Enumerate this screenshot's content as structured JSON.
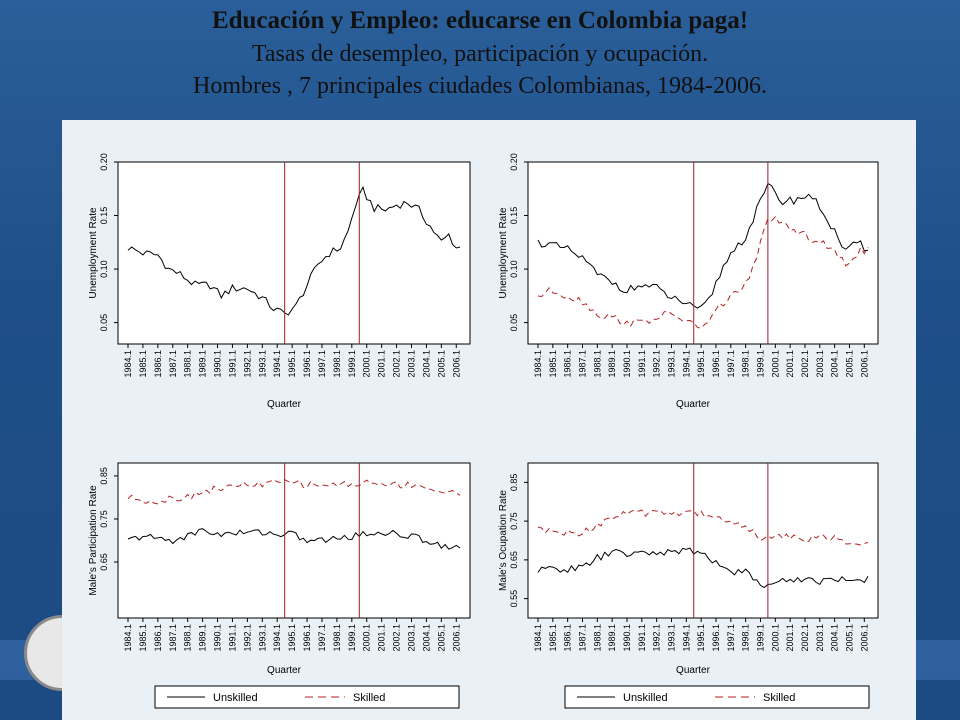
{
  "header": {
    "title": "Educación y Empleo: educarse en Colombia paga!",
    "subtitle1": "Tasas de desempleo, participación y ocupación.",
    "subtitle2": "Hombres , 7 principales ciudades Colombianas, 1984-2006."
  },
  "colors": {
    "unskilled": "#000000",
    "skilled": "#b22222",
    "vline": "#9b1c2c",
    "plot_bg": "#ffffff"
  },
  "chart_data": [
    {
      "type": "line",
      "ylabel": "Unemployment Rate",
      "xlabel": "Quarter",
      "yticks": [
        0.05,
        0.1,
        0.15,
        0.2
      ],
      "ytick_labels": [
        "0.05",
        "0.10",
        "0.15",
        "0.20"
      ],
      "ylim": [
        0.03,
        0.2
      ],
      "vlines": [
        1994.5,
        1999.5
      ],
      "x_start": 1984.0,
      "x_end": 2006.25,
      "series": [
        {
          "name": "Unskilled",
          "keypoints": [
            [
              1984.0,
              0.12
            ],
            [
              1985.0,
              0.115
            ],
            [
              1986.0,
              0.113
            ],
            [
              1986.75,
              0.1
            ],
            [
              1987.5,
              0.095
            ],
            [
              1988.5,
              0.085
            ],
            [
              1989.5,
              0.085
            ],
            [
              1990.25,
              0.075
            ],
            [
              1991.0,
              0.082
            ],
            [
              1992.0,
              0.082
            ],
            [
              1993.0,
              0.073
            ],
            [
              1993.75,
              0.063
            ],
            [
              1994.5,
              0.058
            ],
            [
              1995.25,
              0.065
            ],
            [
              1996.0,
              0.085
            ],
            [
              1996.75,
              0.105
            ],
            [
              1997.5,
              0.115
            ],
            [
              1998.25,
              0.12
            ],
            [
              1998.75,
              0.135
            ],
            [
              1999.25,
              0.16
            ],
            [
              1999.75,
              0.173
            ],
            [
              2000.5,
              0.157
            ],
            [
              2001.25,
              0.155
            ],
            [
              2002.0,
              0.16
            ],
            [
              2002.75,
              0.162
            ],
            [
              2003.5,
              0.155
            ],
            [
              2004.25,
              0.14
            ],
            [
              2005.0,
              0.125
            ],
            [
              2005.5,
              0.132
            ],
            [
              2006.0,
              0.12
            ]
          ]
        }
      ]
    },
    {
      "type": "line",
      "ylabel": "Unemployment Rate",
      "xlabel": "Quarter",
      "yticks": [
        0.05,
        0.1,
        0.15,
        0.2
      ],
      "ytick_labels": [
        "0.05",
        "0.10",
        "0.15",
        "0.20"
      ],
      "ylim": [
        0.03,
        0.2
      ],
      "vlines": [
        1994.5,
        1999.5
      ],
      "x_start": 1984.0,
      "x_end": 2006.25,
      "series": [
        {
          "name": "Unskilled",
          "keypoints": [
            [
              1984.0,
              0.125
            ],
            [
              1985.0,
              0.122
            ],
            [
              1986.0,
              0.118
            ],
            [
              1987.0,
              0.11
            ],
            [
              1988.0,
              0.095
            ],
            [
              1989.0,
              0.088
            ],
            [
              1990.0,
              0.08
            ],
            [
              1991.0,
              0.085
            ],
            [
              1992.0,
              0.082
            ],
            [
              1993.0,
              0.073
            ],
            [
              1994.0,
              0.068
            ],
            [
              1994.75,
              0.06
            ],
            [
              1995.5,
              0.07
            ],
            [
              1996.25,
              0.095
            ],
            [
              1997.0,
              0.115
            ],
            [
              1998.0,
              0.13
            ],
            [
              1998.75,
              0.155
            ],
            [
              1999.5,
              0.178
            ],
            [
              2000.5,
              0.163
            ],
            [
              2001.5,
              0.165
            ],
            [
              2002.25,
              0.17
            ],
            [
              2003.0,
              0.158
            ],
            [
              2004.0,
              0.135
            ],
            [
              2004.75,
              0.115
            ],
            [
              2005.5,
              0.125
            ],
            [
              2006.0,
              0.12
            ]
          ]
        },
        {
          "name": "Skilled",
          "keypoints": [
            [
              1984.0,
              0.075
            ],
            [
              1985.0,
              0.08
            ],
            [
              1986.0,
              0.075
            ],
            [
              1987.0,
              0.07
            ],
            [
              1988.0,
              0.058
            ],
            [
              1989.0,
              0.055
            ],
            [
              1990.0,
              0.05
            ],
            [
              1991.0,
              0.05
            ],
            [
              1992.0,
              0.055
            ],
            [
              1993.0,
              0.058
            ],
            [
              1994.0,
              0.052
            ],
            [
              1994.75,
              0.045
            ],
            [
              1995.5,
              0.05
            ],
            [
              1996.25,
              0.065
            ],
            [
              1997.0,
              0.075
            ],
            [
              1998.0,
              0.085
            ],
            [
              1998.75,
              0.11
            ],
            [
              1999.5,
              0.15
            ],
            [
              2000.5,
              0.14
            ],
            [
              2001.5,
              0.135
            ],
            [
              2002.25,
              0.13
            ],
            [
              2003.0,
              0.125
            ],
            [
              2004.0,
              0.115
            ],
            [
              2004.75,
              0.105
            ],
            [
              2005.5,
              0.115
            ],
            [
              2006.0,
              0.118
            ]
          ]
        }
      ]
    },
    {
      "type": "line",
      "ylabel": "Male's Participation Rate",
      "xlabel": "Quarter",
      "yticks": [
        0.65,
        0.75,
        0.85
      ],
      "ytick_labels": [
        "0.65",
        "0.75",
        "0.85"
      ],
      "ylim": [
        0.52,
        0.88
      ],
      "vlines": [
        1994.5,
        1999.5
      ],
      "x_start": 1984.0,
      "x_end": 2006.25,
      "series": [
        {
          "name": "Unskilled",
          "keypoints": [
            [
              1984.0,
              0.7
            ],
            [
              1985.0,
              0.71
            ],
            [
              1986.0,
              0.705
            ],
            [
              1987.0,
              0.7
            ],
            [
              1988.0,
              0.71
            ],
            [
              1989.0,
              0.725
            ],
            [
              1990.0,
              0.715
            ],
            [
              1991.0,
              0.715
            ],
            [
              1992.0,
              0.72
            ],
            [
              1993.0,
              0.72
            ],
            [
              1994.0,
              0.715
            ],
            [
              1995.0,
              0.715
            ],
            [
              1996.0,
              0.7
            ],
            [
              1997.0,
              0.7
            ],
            [
              1998.0,
              0.705
            ],
            [
              1999.0,
              0.71
            ],
            [
              2000.0,
              0.715
            ],
            [
              2001.0,
              0.72
            ],
            [
              2002.0,
              0.715
            ],
            [
              2003.0,
              0.71
            ],
            [
              2004.0,
              0.7
            ],
            [
              2005.0,
              0.69
            ],
            [
              2006.0,
              0.685
            ]
          ]
        },
        {
          "name": "Skilled",
          "keypoints": [
            [
              1984.0,
              0.8
            ],
            [
              1985.0,
              0.795
            ],
            [
              1986.0,
              0.79
            ],
            [
              1987.0,
              0.8
            ],
            [
              1988.0,
              0.8
            ],
            [
              1989.0,
              0.815
            ],
            [
              1990.0,
              0.82
            ],
            [
              1991.0,
              0.825
            ],
            [
              1992.0,
              0.83
            ],
            [
              1993.0,
              0.83
            ],
            [
              1994.0,
              0.835
            ],
            [
              1995.0,
              0.835
            ],
            [
              1996.0,
              0.83
            ],
            [
              1997.0,
              0.83
            ],
            [
              1998.0,
              0.83
            ],
            [
              1999.0,
              0.83
            ],
            [
              2000.0,
              0.835
            ],
            [
              2001.0,
              0.83
            ],
            [
              2002.0,
              0.83
            ],
            [
              2003.0,
              0.83
            ],
            [
              2004.0,
              0.825
            ],
            [
              2005.0,
              0.81
            ],
            [
              2006.0,
              0.81
            ]
          ]
        }
      ]
    },
    {
      "type": "line",
      "ylabel": "Male's Ocupation Rate",
      "xlabel": "Quarter",
      "yticks": [
        0.55,
        0.65,
        0.75,
        0.85
      ],
      "ytick_labels": [
        "0.55",
        "0.65",
        "0.75",
        "0.85"
      ],
      "ylim": [
        0.5,
        0.9
      ],
      "vlines": [
        1994.5,
        1999.5
      ],
      "x_start": 1984.0,
      "x_end": 2006.25,
      "series": [
        {
          "name": "Unskilled",
          "keypoints": [
            [
              1984.0,
              0.62
            ],
            [
              1985.0,
              0.63
            ],
            [
              1986.0,
              0.625
            ],
            [
              1987.0,
              0.63
            ],
            [
              1988.0,
              0.655
            ],
            [
              1989.0,
              0.67
            ],
            [
              1990.0,
              0.665
            ],
            [
              1991.0,
              0.665
            ],
            [
              1992.0,
              0.67
            ],
            [
              1993.0,
              0.67
            ],
            [
              1994.0,
              0.675
            ],
            [
              1995.0,
              0.665
            ],
            [
              1996.0,
              0.645
            ],
            [
              1997.0,
              0.62
            ],
            [
              1998.0,
              0.62
            ],
            [
              1999.0,
              0.585
            ],
            [
              2000.0,
              0.59
            ],
            [
              2001.0,
              0.6
            ],
            [
              2002.0,
              0.6
            ],
            [
              2003.0,
              0.595
            ],
            [
              2004.0,
              0.6
            ],
            [
              2005.0,
              0.6
            ],
            [
              2006.0,
              0.6
            ]
          ]
        },
        {
          "name": "Skilled",
          "keypoints": [
            [
              1984.0,
              0.73
            ],
            [
              1985.0,
              0.72
            ],
            [
              1986.0,
              0.72
            ],
            [
              1987.0,
              0.72
            ],
            [
              1988.0,
              0.74
            ],
            [
              1989.0,
              0.76
            ],
            [
              1990.0,
              0.77
            ],
            [
              1991.0,
              0.77
            ],
            [
              1992.0,
              0.775
            ],
            [
              1993.0,
              0.77
            ],
            [
              1994.0,
              0.775
            ],
            [
              1995.0,
              0.77
            ],
            [
              1996.0,
              0.76
            ],
            [
              1997.0,
              0.745
            ],
            [
              1998.0,
              0.74
            ],
            [
              1999.0,
              0.7
            ],
            [
              2000.0,
              0.71
            ],
            [
              2001.0,
              0.71
            ],
            [
              2002.0,
              0.705
            ],
            [
              2003.0,
              0.71
            ],
            [
              2004.0,
              0.705
            ],
            [
              2005.0,
              0.69
            ],
            [
              2006.0,
              0.69
            ]
          ]
        }
      ]
    }
  ],
  "xtick_labels": [
    "1984.1",
    "1985.1",
    "1986.1",
    "1987.1",
    "1988.1",
    "1989.1",
    "1990.1",
    "1991.1",
    "1992.1",
    "1993.1",
    "1994.1",
    "1995.1",
    "1996.1",
    "1997.1",
    "1998.1",
    "1999.1",
    "2000.1",
    "2001.1",
    "2002.1",
    "2003.1",
    "2004.1",
    "2005.1",
    "2006.1"
  ],
  "legend": [
    {
      "unskilled_label": "Unskilled",
      "skilled_label": "Skilled"
    },
    {
      "unskilled_label": "Unskilled",
      "skilled_label": "Skilled"
    }
  ]
}
